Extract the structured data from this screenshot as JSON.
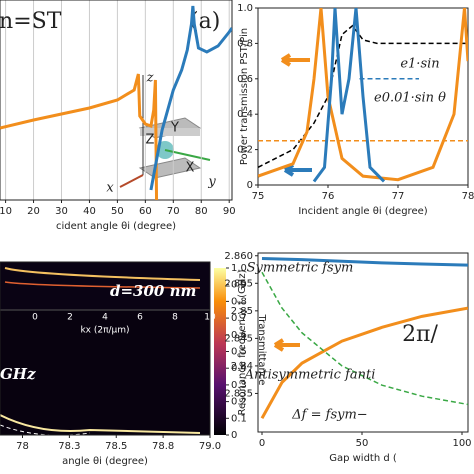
{
  "chart_data": [
    {
      "type": "line",
      "title": "in=ST",
      "panel_label": "(a)",
      "xlabel": "cident angle θi (degree)",
      "xlim": [
        8,
        91
      ],
      "ylim": [
        0,
        1
      ],
      "xticks": [
        10,
        20,
        30,
        40,
        50,
        60,
        70,
        80,
        90
      ],
      "grid": true,
      "annotations": [
        "z",
        "x",
        "y",
        "Z",
        "Y",
        "X"
      ],
      "series": [
        {
          "color": "#f28e1c",
          "x": [
            8,
            20,
            30,
            40,
            50,
            56,
            57.5,
            58,
            60,
            62,
            63,
            63.6,
            64
          ],
          "values": [
            0.36,
            0.4,
            0.43,
            0.46,
            0.5,
            0.55,
            0.63,
            0.42,
            0.38,
            0.37,
            0.45,
            0.6,
            0.0
          ]
        },
        {
          "color": "#2b7bba",
          "x": [
            62,
            66,
            70,
            73,
            75,
            76.5,
            77,
            77.5,
            79,
            82,
            86,
            90,
            91
          ],
          "values": [
            0.05,
            0.35,
            0.55,
            0.65,
            0.75,
            0.88,
            0.97,
            0.88,
            0.76,
            0.74,
            0.77,
            0.84,
            0.86
          ]
        }
      ]
    },
    {
      "type": "line",
      "xlabel": "Incident angle θi (degree)",
      "ylabel": "Power transmission PST/Pin",
      "xlim": [
        75,
        78
      ],
      "ylim": [
        0,
        1
      ],
      "xticks": [
        75,
        76,
        77,
        78
      ],
      "yticks": [
        0,
        0.2,
        0.4,
        0.6,
        0.8,
        {
          "value": 1,
          "label": "1.0"
        }
      ],
      "annotations": [
        "e1·sin",
        "e0.01·sin θ"
      ],
      "series": [
        {
          "color": "#000000",
          "dash": true,
          "x": [
            75,
            75.5,
            75.8,
            76,
            76.2,
            76.35,
            76.5,
            76.7,
            77,
            77.5,
            78
          ],
          "values": [
            0.1,
            0.2,
            0.35,
            0.5,
            0.85,
            0.9,
            0.82,
            0.8,
            0.8,
            0.8,
            0.8
          ]
        },
        {
          "color": "#2b7bba",
          "dash": true,
          "x": [
            76.45,
            77.3
          ],
          "values": [
            0.6,
            0.6
          ]
        },
        {
          "color": "#f28e1c",
          "dash": true,
          "x": [
            75,
            78
          ],
          "values": [
            0.25,
            0.25
          ]
        },
        {
          "color": "#f28e1c",
          "x": [
            75,
            75.5,
            75.7,
            75.8,
            75.9,
            76,
            76.2,
            76.5,
            77,
            77.5,
            77.8,
            77.95,
            78
          ],
          "values": [
            0.05,
            0.12,
            0.3,
            0.6,
            1,
            0.5,
            0.15,
            0.05,
            0.03,
            0.1,
            0.4,
            1,
            0.7
          ]
        },
        {
          "color": "#2b7bba",
          "x": [
            75.8,
            75.95,
            76.05,
            76.1,
            76.2,
            76.3,
            76.4,
            76.5,
            76.6,
            76.8
          ],
          "values": [
            0.02,
            0.1,
            0.6,
            1,
            0.4,
            0.6,
            1,
            0.5,
            0.1,
            0.02
          ]
        }
      ]
    },
    {
      "type": "heatmap",
      "xlabel": "angle θi (degree)",
      "annotations": [
        "GHz",
        "d=300 nm"
      ],
      "xlim": [
        77.88,
        79.0
      ],
      "xticks": [
        78,
        {
          "value": 78.25,
          "label": "78.3"
        },
        78.5,
        {
          "value": 78.75,
          "label": "78.8"
        },
        {
          "value": 79,
          "label": "79.0"
        }
      ],
      "colorbar_label": "Transmittance",
      "clim": [
        0,
        1
      ],
      "colorbar_ticks": [
        0,
        0.1,
        0.2,
        0.3,
        0.4,
        0.5,
        0.6,
        0.7,
        0.8,
        0.9,
        {
          "value": 1,
          "label": "1.0"
        }
      ],
      "inset_xlabel": "kx (2π/μm)",
      "inset_xlim": [
        -2,
        10
      ],
      "inset_xticks": [
        0,
        2,
        4,
        6,
        8,
        10
      ]
    },
    {
      "type": "line",
      "xlabel": "Gap width d (",
      "ylabel": "Resonance frequency f (GHz)",
      "xlim": [
        -2,
        103
      ],
      "ylim": [
        2.828,
        2.8605
      ],
      "xticks": [
        0,
        50,
        100
      ],
      "yticks": [
        2.835,
        2.84,
        2.845,
        2.85,
        2.855,
        {
          "value": 2.86,
          "label": "2.860"
        }
      ],
      "annotations": [
        "Symmetric fsym",
        "Antisymmetric fanti",
        "2π/",
        "Δf = fsym−"
      ],
      "series": [
        {
          "color": "#2b7bba",
          "x": [
            0,
            20,
            40,
            60,
            80,
            103
          ],
          "values": [
            2.8595,
            2.8593,
            2.859,
            2.8587,
            2.8585,
            2.8583
          ]
        },
        {
          "color": "#f28e1c",
          "x": [
            0,
            10,
            20,
            40,
            60,
            80,
            103
          ],
          "values": [
            2.8305,
            2.837,
            2.8405,
            2.8445,
            2.847,
            2.849,
            2.8505
          ]
        },
        {
          "color": "#3aa845",
          "dash": true,
          "x": [
            0,
            10,
            20,
            40,
            60,
            80,
            103
          ],
          "values": [
            2.857,
            2.8505,
            2.846,
            2.84,
            2.8365,
            2.8345,
            2.833
          ]
        }
      ]
    }
  ]
}
